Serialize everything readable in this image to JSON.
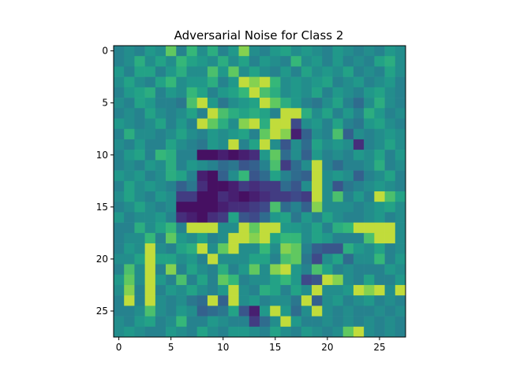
{
  "chart_data": {
    "type": "heatmap",
    "title": "Adversarial Noise for Class 2",
    "xlabel": "",
    "ylabel": "",
    "rows": 28,
    "cols": 28,
    "xticks": [
      0,
      5,
      10,
      15,
      20,
      25
    ],
    "yticks": [
      0,
      5,
      10,
      15,
      20,
      25
    ],
    "xlim": [
      -0.5,
      27.5
    ],
    "ylim": [
      27.5,
      -0.5
    ],
    "colormap": "viridis",
    "grid": false,
    "legend": "none",
    "value_range": [
      -1,
      1
    ],
    "values": [
      [
        0.0,
        0.1,
        0.0,
        0.2,
        0.1,
        0.7,
        0.0,
        0.5,
        0.1,
        0.4,
        0.0,
        0.2,
        0.8,
        0.1,
        0.0,
        0.2,
        0.3,
        0.1,
        0.2,
        0.1,
        0.0,
        0.2,
        0.1,
        0.0,
        0.1,
        0.0,
        0.2,
        0.1
      ],
      [
        0.0,
        0.1,
        0.4,
        0.1,
        0.3,
        0.1,
        0.5,
        0.3,
        0.2,
        0.1,
        0.4,
        0.1,
        0.3,
        0.0,
        0.2,
        0.1,
        0.0,
        0.5,
        0.1,
        0.2,
        0.0,
        0.2,
        0.0,
        0.1,
        0.0,
        0.3,
        0.4,
        0.1
      ],
      [
        0.2,
        0.0,
        0.3,
        0.3,
        0.0,
        0.2,
        0.4,
        0.1,
        0.1,
        0.6,
        0.2,
        0.7,
        0.1,
        0.3,
        0.1,
        0.0,
        0.2,
        0.0,
        0.3,
        0.1,
        0.2,
        0.1,
        0.3,
        0.0,
        0.1,
        0.0,
        0.3,
        0.1
      ],
      [
        0.1,
        0.3,
        0.1,
        0.0,
        0.3,
        0.5,
        0.1,
        0.2,
        0.2,
        0.4,
        0.0,
        0.2,
        0.9,
        0.8,
        0.9,
        0.5,
        0.1,
        0.2,
        0.1,
        0.2,
        0.3,
        0.0,
        0.1,
        0.2,
        0.0,
        0.1,
        0.2,
        0.0
      ],
      [
        0.0,
        0.2,
        0.3,
        0.4,
        0.0,
        0.2,
        0.1,
        0.5,
        0.3,
        0.0,
        0.2,
        0.3,
        0.5,
        0.9,
        0.6,
        0.4,
        0.1,
        0.2,
        0.1,
        0.3,
        0.0,
        0.2,
        0.1,
        0.0,
        0.2,
        0.3,
        0.1,
        0.0
      ],
      [
        0.1,
        0.0,
        0.3,
        0.2,
        0.0,
        0.0,
        -0.1,
        0.6,
        0.9,
        0.2,
        -0.1,
        0.1,
        0.2,
        0.3,
        0.9,
        0.7,
        0.4,
        0.2,
        0.0,
        -0.1,
        0.1,
        0.3,
        0.0,
        -0.2,
        0.1,
        0.4,
        0.1,
        0.0
      ],
      [
        0.0,
        0.1,
        0.0,
        0.3,
        0.1,
        0.0,
        0.1,
        0.3,
        0.0,
        0.9,
        0.6,
        0.4,
        0.3,
        0.4,
        0.3,
        0.0,
        0.9,
        0.9,
        0.4,
        0.1,
        0.3,
        0.0,
        0.2,
        0.0,
        0.4,
        0.2,
        0.0,
        0.1
      ],
      [
        0.2,
        0.1,
        0.0,
        0.1,
        0.3,
        0.0,
        0.2,
        0.0,
        0.9,
        0.7,
        0.4,
        0.1,
        0.8,
        0.9,
        0.4,
        0.9,
        0.9,
        -0.5,
        0.1,
        0.2,
        0.0,
        0.3,
        0.0,
        -0.1,
        0.2,
        0.3,
        0.1,
        0.0
      ],
      [
        0.0,
        0.4,
        0.1,
        0.1,
        0.0,
        0.1,
        0.3,
        0.1,
        0.0,
        0.2,
        0.1,
        0.2,
        0.3,
        0.0,
        0.7,
        0.9,
        0.8,
        -0.8,
        -0.3,
        0.1,
        0.0,
        0.6,
        -0.3,
        0.1,
        0.0,
        0.1,
        0.2,
        0.1
      ],
      [
        0.1,
        0.0,
        0.2,
        0.0,
        0.0,
        0.3,
        0.1,
        0.0,
        -0.1,
        0.2,
        0.1,
        0.9,
        0.0,
        0.3,
        0.9,
        0.1,
        -0.4,
        0.1,
        -0.2,
        0.3,
        0.1,
        0.2,
        0.1,
        -0.7,
        0.0,
        0.1,
        0.3,
        0.1
      ],
      [
        0.0,
        0.2,
        0.3,
        0.0,
        0.5,
        0.4,
        0.0,
        0.0,
        -0.9,
        -0.9,
        -0.8,
        -0.9,
        -0.8,
        -0.7,
        0.2,
        0.7,
        -0.2,
        0.1,
        -0.3,
        0.2,
        0.0,
        0.1,
        0.0,
        0.2,
        0.1,
        0.3,
        0.0,
        0.2
      ],
      [
        0.0,
        0.1,
        0.0,
        0.2,
        0.1,
        0.4,
        0.0,
        0.2,
        0.1,
        0.0,
        -0.2,
        -0.1,
        -0.4,
        -0.3,
        0.0,
        0.6,
        -0.6,
        -0.2,
        0.1,
        0.9,
        0.0,
        -0.2,
        0.0,
        0.0,
        0.1,
        0.4,
        0.0,
        0.1
      ],
      [
        0.2,
        0.1,
        0.2,
        0.0,
        0.1,
        0.4,
        0.3,
        0.0,
        -0.8,
        -0.9,
        -0.3,
        0.1,
        0.5,
        -0.4,
        -0.2,
        0.3,
        0.0,
        -0.2,
        -0.3,
        0.9,
        0.1,
        0.2,
        0.1,
        -0.3,
        0.0,
        0.1,
        0.3,
        0.0
      ],
      [
        0.0,
        0.3,
        0.1,
        0.2,
        0.1,
        0.0,
        -0.3,
        -0.1,
        -0.7,
        -0.9,
        -0.9,
        -0.8,
        -0.6,
        -0.7,
        -0.6,
        -0.6,
        -0.2,
        -0.4,
        0.1,
        0.9,
        0.1,
        -0.4,
        -0.1,
        0.0,
        0.1,
        0.2,
        0.1,
        0.0
      ],
      [
        0.1,
        0.3,
        0.1,
        0.0,
        0.2,
        0.1,
        -0.6,
        -0.6,
        -0.9,
        -0.9,
        -0.7,
        -0.8,
        -0.9,
        -0.8,
        -0.7,
        -0.6,
        -0.6,
        -0.5,
        -0.6,
        0.9,
        0.1,
        0.6,
        0.0,
        0.2,
        0.0,
        0.9,
        0.6,
        0.3
      ],
      [
        0.0,
        0.1,
        0.3,
        0.1,
        0.0,
        0.1,
        -0.9,
        -0.9,
        -0.9,
        -0.9,
        -0.8,
        -0.7,
        -0.7,
        -0.6,
        -0.5,
        0.6,
        -0.2,
        0.0,
        -0.3,
        0.8,
        0.1,
        0.1,
        0.1,
        0.0,
        0.1,
        0.2,
        0.3,
        0.1
      ],
      [
        0.2,
        0.0,
        0.1,
        0.1,
        0.2,
        0.0,
        -0.7,
        -0.8,
        -0.9,
        -0.7,
        -0.6,
        0.3,
        -0.4,
        -0.5,
        -0.2,
        0.2,
        0.3,
        -0.1,
        0.2,
        0.0,
        0.3,
        0.1,
        0.0,
        0.0,
        0.1,
        0.2,
        0.0,
        0.1
      ],
      [
        0.0,
        0.0,
        0.4,
        0.1,
        0.3,
        0.5,
        0.0,
        0.9,
        0.9,
        0.9,
        0.1,
        0.1,
        0.9,
        0.7,
        0.9,
        0.9,
        0.2,
        0.2,
        0.1,
        0.3,
        0.0,
        0.4,
        0.5,
        0.9,
        0.9,
        0.9,
        0.9,
        0.1
      ],
      [
        0.0,
        0.1,
        0.1,
        0.5,
        0.0,
        0.7,
        0.2,
        0.1,
        0.3,
        0.0,
        0.1,
        0.9,
        0.9,
        0.8,
        0.9,
        0.3,
        0.5,
        0.5,
        0.1,
        0.3,
        0.2,
        0.0,
        0.0,
        0.0,
        0.6,
        0.9,
        0.9,
        0.1
      ],
      [
        0.0,
        0.2,
        0.1,
        0.9,
        0.1,
        0.0,
        0.3,
        0.4,
        0.9,
        0.1,
        0.7,
        0.9,
        0.1,
        0.1,
        0.5,
        0.1,
        0.8,
        0.7,
        0.0,
        -0.3,
        -0.4,
        -0.4,
        0.4,
        0.2,
        0.1,
        0.3,
        0.0,
        0.1
      ],
      [
        0.1,
        0.1,
        0.3,
        0.9,
        0.3,
        0.3,
        0.1,
        0.2,
        0.0,
        0.9,
        0.1,
        0.1,
        0.1,
        0.3,
        0.3,
        0.0,
        0.6,
        0.7,
        -0.1,
        -0.5,
        0.1,
        0.3,
        -0.2,
        0.1,
        0.1,
        0.5,
        0.0,
        0.2
      ],
      [
        0.0,
        0.6,
        0.1,
        0.9,
        0.0,
        0.8,
        0.0,
        0.3,
        0.1,
        0.0,
        0.4,
        0.0,
        0.2,
        0.7,
        0.1,
        0.8,
        0.9,
        0.2,
        0.0,
        0.6,
        0.3,
        0.0,
        0.1,
        0.0,
        0.0,
        0.0,
        0.2,
        0.1
      ],
      [
        0.2,
        0.7,
        0.1,
        0.9,
        0.2,
        0.0,
        0.6,
        0.0,
        0.3,
        0.0,
        0.7,
        0.5,
        0.0,
        0.1,
        0.1,
        0.3,
        0.5,
        0.2,
        -0.5,
        -0.4,
        0.9,
        0.8,
        0.1,
        0.0,
        0.3,
        0.0,
        0.0,
        0.2
      ],
      [
        0.1,
        0.8,
        0.0,
        0.9,
        0.0,
        0.2,
        0.1,
        0.3,
        0.1,
        0.0,
        0.2,
        0.9,
        0.1,
        0.0,
        0.4,
        0.3,
        0.0,
        0.3,
        0.1,
        0.9,
        0.1,
        0.1,
        0.2,
        0.9,
        0.8,
        0.9,
        0.1,
        0.9
      ],
      [
        0.0,
        0.9,
        0.0,
        0.9,
        0.1,
        0.0,
        0.1,
        -0.1,
        -0.2,
        0.9,
        -0.3,
        0.9,
        0.1,
        0.2,
        0.0,
        0.1,
        0.1,
        -0.1,
        0.9,
        -0.3,
        0.1,
        0.2,
        0.0,
        0.1,
        0.2,
        0.0,
        0.1,
        0.0
      ],
      [
        0.0,
        0.0,
        0.1,
        0.6,
        0.1,
        0.0,
        0.2,
        0.1,
        -0.3,
        -0.2,
        -0.1,
        0.3,
        -0.4,
        -0.8,
        0.2,
        0.9,
        0.2,
        -0.2,
        0.1,
        0.9,
        0.1,
        0.0,
        0.1,
        0.0,
        0.0,
        0.1,
        0.0,
        0.1
      ],
      [
        0.1,
        0.0,
        0.2,
        0.3,
        0.0,
        0.1,
        0.5,
        0.0,
        0.0,
        0.2,
        0.1,
        0.0,
        0.0,
        -0.6,
        -0.2,
        0.1,
        0.9,
        0.2,
        0.0,
        0.0,
        0.1,
        0.0,
        0.1,
        0.0,
        0.1,
        0.0,
        0.1,
        0.0
      ],
      [
        0.1,
        0.2,
        0.1,
        0.0,
        0.0,
        0.2,
        0.1,
        0.0,
        0.3,
        0.1,
        0.0,
        0.2,
        0.2,
        0.1,
        0.0,
        0.3,
        0.1,
        0.0,
        0.2,
        0.1,
        0.0,
        0.1,
        0.7,
        0.9,
        0.1,
        0.0,
        0.1,
        0.0
      ]
    ]
  }
}
